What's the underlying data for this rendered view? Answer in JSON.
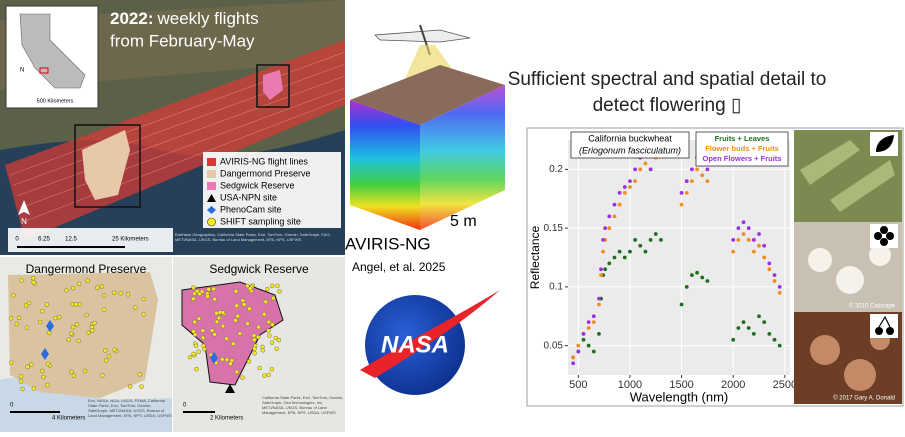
{
  "map": {
    "title_year": "2022:",
    "title_line1": "weekly flights",
    "title_line2": "from February-May",
    "inset_scale": "500 Kilometers",
    "north": "N",
    "scale_labels": [
      "0",
      "6.25",
      "12.5",
      "25 Kilometers"
    ],
    "legend": [
      "AVIRIS-NG flight lines",
      "Dangermond Preserve",
      "Sedgwick Reserve",
      "USA-NPN site",
      "PhenoCam site",
      "SHIFT sampling site"
    ],
    "credits": "Earthstar Geographics, California State Parks, Esri, TomTom, Garmin, SafeGraph, FAO, METI/NASA, USGS, Bureau of Land Management, EPA, NPS, USFWS",
    "panels": [
      {
        "title": "Dangermond Preserve",
        "scale_zero": "0",
        "scale": "4 Kilometers",
        "credits": "Esri, NASA, NGA, USGS, FEMA, California State Parks, Esri, TomTom, Garmin, SafeGraph, METI/NASA, USGS, Bureau of Land Management, EPA, NPS, USDA, USFWS"
      },
      {
        "title": "Sedgwick Reserve",
        "scale_zero": "0",
        "scale": "2 Kilometers",
        "credits": "California State Parks, Esri, TomTom, Garmin, SafeGraph, GeoTechnologies, Inc, METI/NASA, USGS, Bureau of Land Management, EPA, NPS, USDA, USFWS"
      }
    ]
  },
  "aviris": {
    "scale": "5 m",
    "name": "AVIRIS-NG",
    "citation": "Angel, et al. 2025",
    "logo": "NASA"
  },
  "slide_title": [
    "Sufficient spectral and spatial detail to",
    "detect flowering ▯"
  ],
  "photo_credits": [
    "© 2010 Calscape",
    "© 2017 Gary A. Donald"
  ],
  "chart_data": {
    "type": "scatter",
    "annotation": [
      "California buckwheat",
      "(Eriogonum fasciculatum)"
    ],
    "x_label": "Wavelength (nm)",
    "y_label": "Reflectance",
    "xlim": [
      400,
      2550
    ],
    "ylim": [
      0.025,
      0.225
    ],
    "xticks": [
      500,
      1000,
      1500,
      2000,
      2500
    ],
    "yticks": [
      0.05,
      0.1,
      0.15,
      0.2
    ],
    "grid": true,
    "legend": "top-right",
    "x": [
      450,
      500,
      550,
      600,
      650,
      700,
      720,
      740,
      760,
      800,
      850,
      900,
      950,
      1000,
      1050,
      1100,
      1150,
      1200,
      1250,
      1300,
      1500,
      1550,
      1600,
      1650,
      1700,
      1750,
      2000,
      2050,
      2100,
      2150,
      2200,
      2250,
      2300,
      2350,
      2400,
      2450
    ],
    "series": [
      {
        "name": "Fruits + Leaves",
        "color": "#1f6e1f",
        "values": [
          0.04,
          0.045,
          0.055,
          0.05,
          0.045,
          0.06,
          0.09,
          0.11,
          0.115,
          0.12,
          0.125,
          0.13,
          0.125,
          0.13,
          0.14,
          0.135,
          0.13,
          0.14,
          0.145,
          0.14,
          0.085,
          0.1,
          0.11,
          0.112,
          0.108,
          0.105,
          0.055,
          0.065,
          0.07,
          0.065,
          0.06,
          0.075,
          0.07,
          0.06,
          0.055,
          0.05
        ]
      },
      {
        "name": "Flower buds + Fruits",
        "color": "#f28c1c",
        "values": [
          0.04,
          0.05,
          0.06,
          0.065,
          0.07,
          0.085,
          0.11,
          0.13,
          0.14,
          0.15,
          0.16,
          0.17,
          0.18,
          0.185,
          0.19,
          0.2,
          0.205,
          0.2,
          0.21,
          0.215,
          0.17,
          0.18,
          0.19,
          0.2,
          0.195,
          0.19,
          0.13,
          0.14,
          0.145,
          0.14,
          0.13,
          0.135,
          0.125,
          0.115,
          0.105,
          0.095
        ]
      },
      {
        "name": "Open Flowers + Fruits",
        "color": "#9b30e0",
        "values": [
          0.035,
          0.045,
          0.06,
          0.07,
          0.075,
          0.09,
          0.115,
          0.14,
          0.15,
          0.16,
          0.17,
          0.18,
          0.185,
          0.19,
          0.2,
          0.21,
          0.215,
          0.2,
          0.215,
          0.22,
          0.18,
          0.19,
          0.2,
          0.21,
          0.205,
          0.2,
          0.14,
          0.15,
          0.155,
          0.15,
          0.14,
          0.145,
          0.135,
          0.12,
          0.11,
          0.1
        ]
      }
    ]
  }
}
